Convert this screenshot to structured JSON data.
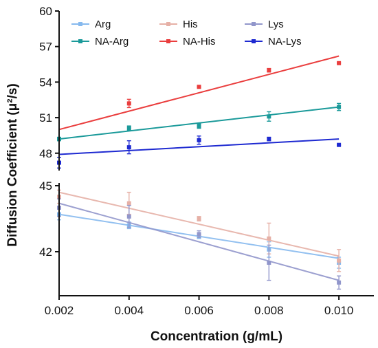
{
  "chart_data": {
    "type": "scatter",
    "xlabel": "Concentration (g/mL)",
    "ylabel": "Diffusion Coefficient (μ²/s)",
    "xlim": [
      0.002,
      0.011
    ],
    "xticks": [
      "0.002",
      "0.004",
      "0.006",
      "0.008",
      "0.010"
    ],
    "x": [
      0.002,
      0.004,
      0.006,
      0.008,
      0.01
    ],
    "axis_break": true,
    "lower_panel": {
      "ylim": [
        40.0,
        45.0
      ],
      "yticks": [
        "42",
        "45"
      ]
    },
    "upper_panel": {
      "ylim": [
        47.0,
        60.0
      ],
      "yticks": [
        "48",
        "51",
        "54",
        "57",
        "60"
      ]
    },
    "legend": {
      "placement": "top",
      "columns": 3
    },
    "series": [
      {
        "name": "Arg",
        "panel": "lower",
        "color": "#86b9ee",
        "light": true,
        "values": [
          43.7,
          43.2,
          42.7,
          42.1,
          41.5
        ],
        "errors": [
          0.25,
          0.15,
          0.1,
          0.35,
          0.25
        ],
        "fit": [
          43.7,
          41.7
        ]
      },
      {
        "name": "His",
        "panel": "lower",
        "color": "#e6b0a6",
        "light": true,
        "values": [
          44.5,
          44.2,
          43.5,
          42.6,
          41.6
        ],
        "errors": [
          0.3,
          0.5,
          0.1,
          0.7,
          0.5
        ],
        "fit": [
          44.7,
          41.8
        ]
      },
      {
        "name": "Lys",
        "panel": "lower",
        "color": "#9196cb",
        "light": true,
        "values": [
          44.0,
          43.6,
          42.8,
          41.5,
          40.6
        ],
        "errors": [
          0.4,
          0.5,
          0.15,
          0.8,
          0.3
        ],
        "fit": [
          44.2,
          40.7
        ]
      },
      {
        "name": "NA-Arg",
        "panel": "upper",
        "color": "#1b9a9a",
        "light": false,
        "values": [
          49.2,
          50.1,
          50.3,
          51.1,
          51.9
        ],
        "errors": [
          0.15,
          0.2,
          0.2,
          0.4,
          0.3
        ],
        "fit": [
          49.2,
          51.9
        ]
      },
      {
        "name": "NA-His",
        "panel": "upper",
        "color": "#ea3e3e",
        "light": false,
        "values": [
          null,
          52.2,
          53.6,
          55.0,
          55.6
        ],
        "errors": [
          0,
          0.35,
          0.05,
          0.15,
          0.05
        ],
        "fit": [
          50.0,
          56.2
        ]
      },
      {
        "name": "NA-Lys",
        "panel": "upper",
        "color": "#1e2ad1",
        "light": false,
        "values": [
          47.2,
          48.5,
          49.1,
          49.2,
          48.7
        ],
        "errors": [
          0.45,
          0.55,
          0.35,
          0.15,
          0.05
        ],
        "fit": [
          47.9,
          49.2
        ]
      }
    ]
  }
}
